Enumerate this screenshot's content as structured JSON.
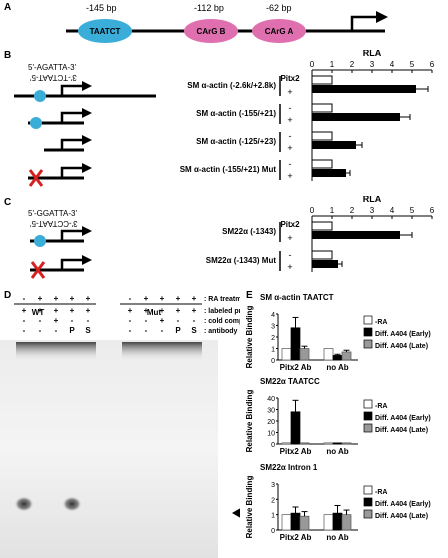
{
  "panelA": {
    "letter": "A",
    "elements": [
      {
        "label": "TAATCT",
        "distance": "-145 bp",
        "color": "#3aaed8"
      },
      {
        "label": "CArG B",
        "distance": "-112 bp",
        "color": "#e06fb0"
      },
      {
        "label": "CArG A",
        "distance": "-62 bp",
        "color": "#e06fb0"
      }
    ]
  },
  "panelB": {
    "letter": "B",
    "seq_top": "5'-AGATTA-3'",
    "seq_bottom": "3'-TCTAAT-5'",
    "axis_title": "RLA",
    "pitx_label": "Pitx2",
    "ticks": [
      "0",
      "1",
      "2",
      "3",
      "4",
      "5",
      "6"
    ],
    "constructs": [
      {
        "name": "SM α-actin (-2.6k/+2.8k)",
        "minus": 1.0,
        "plus": 5.2,
        "err": 0.6
      },
      {
        "name": "SM α-actin (-155/+21)",
        "minus": 1.0,
        "plus": 4.4,
        "err": 0.5
      },
      {
        "name": "SM α-actin (-125/+23)",
        "minus": 1.0,
        "plus": 2.2,
        "err": 0.3
      },
      {
        "name": "SM α-actin (-155/+21) Mut",
        "minus": 1.0,
        "plus": 1.7,
        "err": 0.2
      }
    ]
  },
  "panelC": {
    "letter": "C",
    "seq_top": "5'-GGATTA-3'",
    "seq_bottom": "3'-CCTAAT-5'",
    "axis_title": "RLA",
    "pitx_label": "Pitx2",
    "ticks": [
      "0",
      "1",
      "2",
      "3",
      "4",
      "5",
      "6"
    ],
    "constructs": [
      {
        "name": "SM22α (-1343)",
        "minus": 1.0,
        "plus": 4.4,
        "err": 0.6
      },
      {
        "name": "SM22α (-1343) Mut",
        "minus": 1.0,
        "plus": 1.3,
        "err": 0.2
      }
    ]
  },
  "panelD": {
    "letter": "D",
    "row_labels": [
      ": RA treatment",
      ": labeled probe",
      ": cold competitor",
      ": antibody"
    ],
    "group_wt": "WT",
    "group_mut": "Mut",
    "ra_row": [
      "-",
      "+",
      "+",
      "+",
      "+",
      "-",
      "+",
      "+",
      "+",
      "+"
    ],
    "probe_row": [
      "+",
      "+",
      "+",
      "+",
      "+",
      "+",
      "+",
      "+",
      "+",
      "+"
    ],
    "cold_row": [
      "-",
      "-",
      "+",
      "-",
      "-",
      "-",
      "-",
      "+",
      "-",
      "-"
    ],
    "ab_row": [
      "-",
      "-",
      "-",
      "P",
      "S",
      "-",
      "-",
      "-",
      "P",
      "S"
    ]
  },
  "panelE": {
    "letter": "E",
    "ylabel": "Relative Binding",
    "legend": [
      "-RA",
      "Diff. A404 (Early)",
      "Diff. A404 (Late)"
    ],
    "colors": [
      "#ffffff",
      "#000000",
      "#999999"
    ],
    "groups": [
      "Pitx2 Ab",
      "no Ab"
    ],
    "charts": [
      {
        "title": "SM α-actin TAATCT",
        "ymax": 4,
        "ticks": [
          "0",
          "1",
          "2",
          "3",
          "4"
        ],
        "values": [
          [
            1.0,
            2.8,
            1.0
          ],
          [
            1.0,
            0.4,
            0.7
          ]
        ],
        "errors": [
          [
            0,
            0.9,
            0.2
          ],
          [
            0,
            0.1,
            0.15
          ]
        ]
      },
      {
        "title": "SM22α TAATCC",
        "ymax": 40,
        "ticks": [
          "0",
          "10",
          "20",
          "30",
          "40"
        ],
        "values": [
          [
            1.0,
            28.0,
            1.0
          ],
          [
            1.0,
            1.0,
            1.0
          ]
        ],
        "errors": [
          [
            0,
            10.0,
            0
          ],
          [
            0,
            0,
            0
          ]
        ]
      },
      {
        "title": "SM22α Intron 1",
        "ymax": 3,
        "ticks": [
          "0",
          "1",
          "2",
          "3"
        ],
        "values": [
          [
            1.0,
            1.1,
            0.9
          ],
          [
            1.0,
            1.1,
            1.0
          ]
        ],
        "errors": [
          [
            0,
            0.4,
            0.3
          ],
          [
            0,
            0.5,
            0.3
          ]
        ]
      }
    ]
  }
}
